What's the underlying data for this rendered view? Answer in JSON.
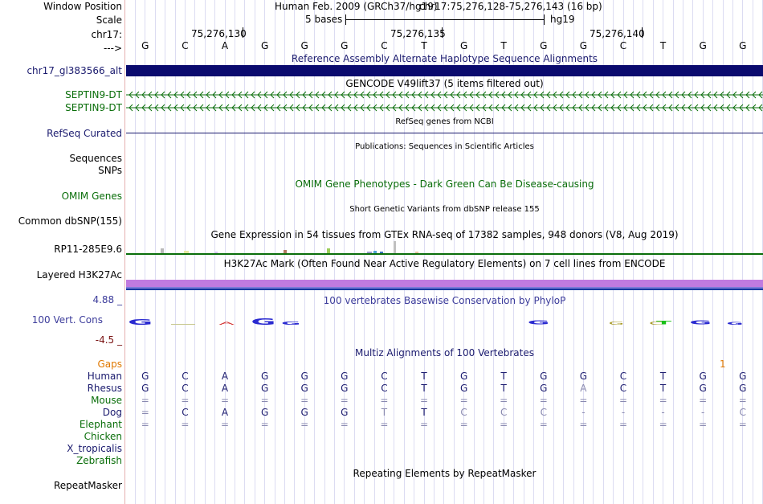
{
  "header": {
    "window_position_label": "Window Position",
    "assembly": "Human Feb. 2009 (GRCh37/hg19)",
    "position": "chr17:75,276,128-75,276,143 (16 bp)",
    "scale_label": "Scale",
    "scale_value": "5 bases",
    "scale_db": "hg19",
    "chrom_label": "chr17:",
    "ticks": [
      "75,276,130",
      "75,276,135",
      "75,276,140"
    ],
    "strand_label": "--->"
  },
  "bases": [
    "G",
    "C",
    "A",
    "G",
    "G",
    "G",
    "C",
    "T",
    "G",
    "T",
    "G",
    "G",
    "C",
    "T",
    "G",
    "G"
  ],
  "tracks": {
    "alt_haplo": {
      "title": "Reference Assembly Alternate Haplotype Sequence Alignments",
      "label": "chr17_gl383566_alt",
      "color": "#0a0a6e"
    },
    "gencode": {
      "title": "GENCODE V49lift37 (5 items filtered out)",
      "items": [
        "SEPTIN9-DT",
        "SEPTIN9-DT"
      ],
      "color": "#0a6e0a"
    },
    "refseq": {
      "title": "RefSeq genes from NCBI",
      "label": "RefSeq Curated"
    },
    "publications": {
      "title": "Publications: Sequences in Scientific Articles",
      "labels": [
        "Sequences",
        "SNPs"
      ]
    },
    "omim": {
      "title": "OMIM Gene Phenotypes - Dark Green Can Be Disease-causing",
      "label": "OMIM Genes"
    },
    "dbsnp": {
      "title": "Short Genetic Variants from dbSNP release 155",
      "label": "Common dbSNP(155)"
    },
    "gtex": {
      "title": "Gene Expression in 54 tissues from GTEx RNA-seq of 17382 samples, 948 donors (V8, Aug 2019)",
      "label": "RP11-285E9.6"
    },
    "h3k27ac": {
      "title": "H3K27Ac Mark (Often Found Near Active Regulatory Elements) on 7 cell lines from ENCODE",
      "label": "Layered H3K27Ac",
      "color": "#c07be0"
    },
    "phylop": {
      "title": "100 vertebrates Basewise Conservation by PhyloP",
      "label": "100 Vert. Cons",
      "max": "4.88 _",
      "min": "-4.5 _"
    },
    "multiz": {
      "title": "Multiz Alignments of 100 Vertebrates",
      "gaps_label": "Gaps",
      "gaps_value": "1",
      "species": [
        {
          "name": "Human",
          "color": "#1a1a6e",
          "seq": [
            "G",
            "C",
            "A",
            "G",
            "G",
            "G",
            "C",
            "T",
            "G",
            "T",
            "G",
            "G",
            "C",
            "T",
            "G",
            "G"
          ]
        },
        {
          "name": "Rhesus",
          "color": "#1a1a6e",
          "seq": [
            "G",
            "C",
            "A",
            "G",
            "G",
            "G",
            "C",
            "T",
            "G",
            "T",
            "G",
            "A",
            "C",
            "T",
            "G",
            "G"
          ]
        },
        {
          "name": "Mouse",
          "color": "#0a6e0a",
          "seq": [
            "=",
            "=",
            "=",
            "=",
            "=",
            "=",
            "=",
            "=",
            "=",
            "=",
            "=",
            "=",
            "=",
            "=",
            "=",
            "="
          ]
        },
        {
          "name": "Dog",
          "color": "#1a1a6e",
          "seq": [
            "=",
            "C",
            "A",
            "G",
            "G",
            "G",
            "T",
            "T",
            "C",
            "C",
            "C",
            "-",
            "-",
            "-",
            "-",
            "C"
          ]
        },
        {
          "name": "Elephant",
          "color": "#0a6e0a",
          "seq": [
            "=",
            "=",
            "=",
            "=",
            "=",
            "=",
            "=",
            "=",
            "=",
            "=",
            "=",
            "=",
            "=",
            "=",
            "=",
            "="
          ]
        },
        {
          "name": "Chicken",
          "color": "#0a6e0a",
          "seq": []
        },
        {
          "name": "X_tropicalis",
          "color": "#1a1a6e",
          "seq": []
        },
        {
          "name": "Zebrafish",
          "color": "#0a6e0a",
          "seq": []
        }
      ]
    },
    "repeatmasker": {
      "title": "Repeating Elements by RepeatMasker",
      "label": "RepeatMasker"
    }
  }
}
